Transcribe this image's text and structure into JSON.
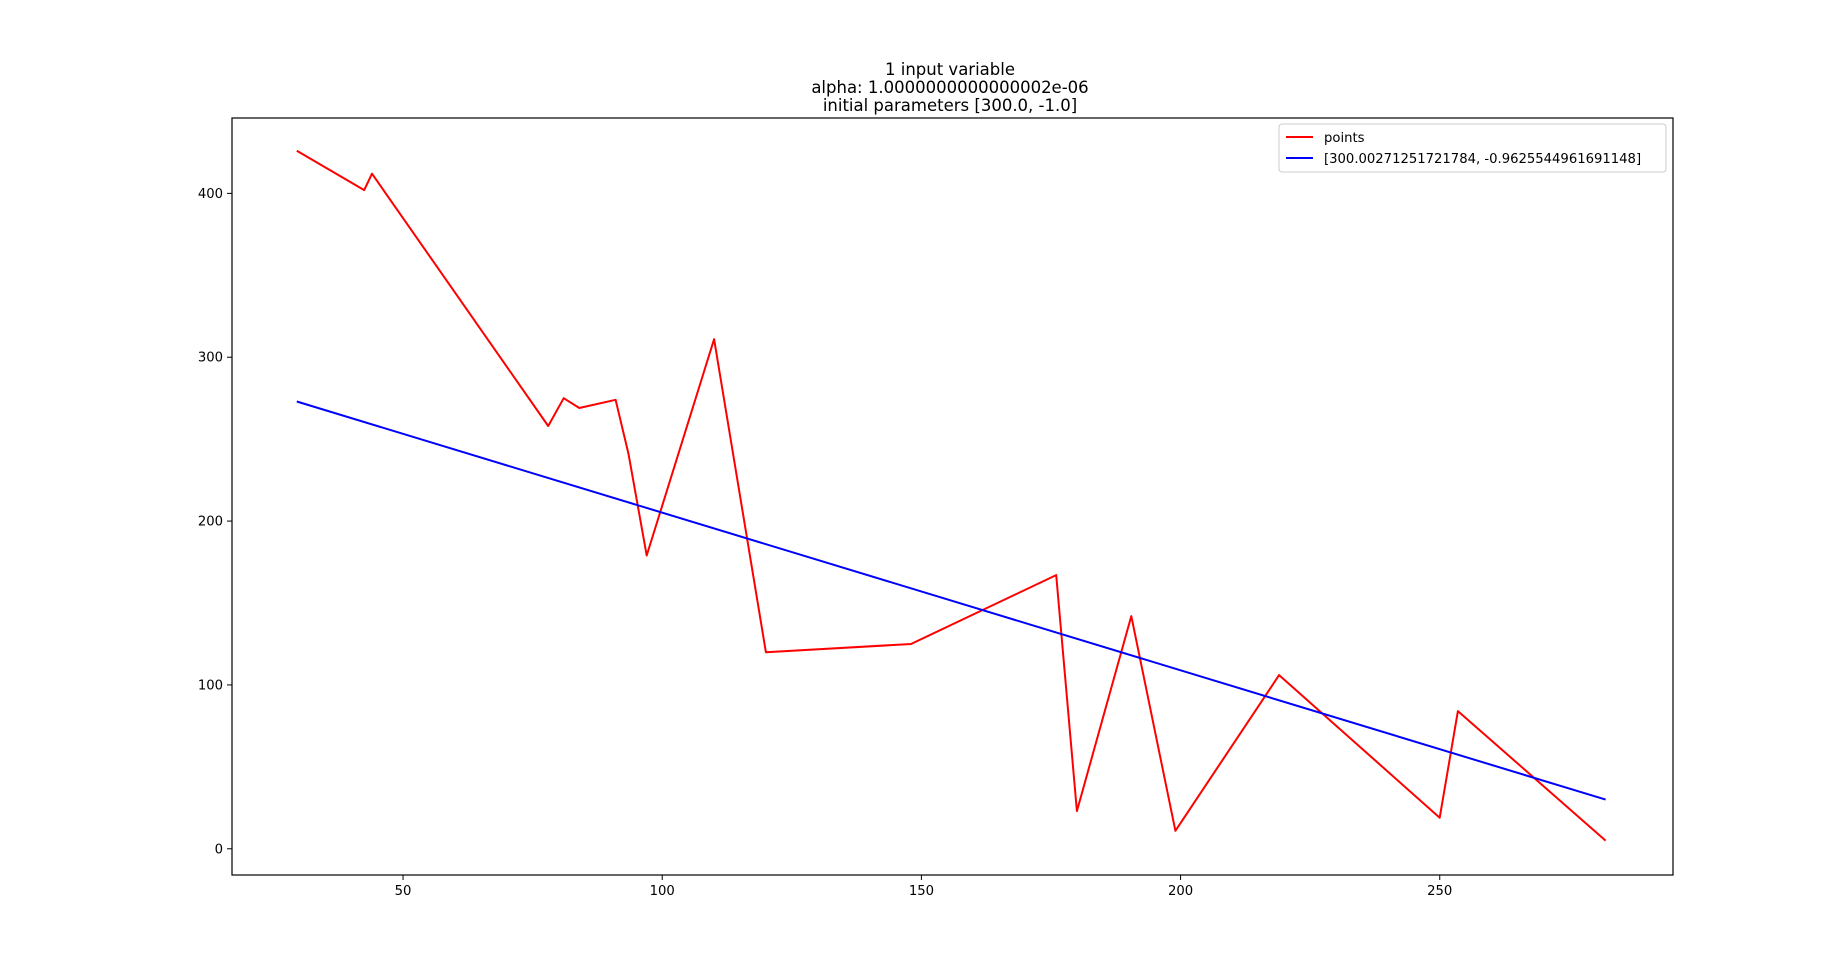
{
  "chart_data": {
    "type": "line",
    "title": [
      "1 input variable",
      "alpha: 1.0000000000000002e-06",
      "initial parameters [300.0, -1.0]"
    ],
    "xlabel": "",
    "ylabel": "",
    "xlim": [
      17,
      295
    ],
    "ylim": [
      -16,
      446
    ],
    "xticks": [
      50,
      100,
      150,
      200,
      250
    ],
    "yticks": [
      0,
      100,
      200,
      300,
      400
    ],
    "grid": false,
    "legend_position": "top-right",
    "series": [
      {
        "name": "points",
        "color": "#ff0000",
        "x": [
          29.5,
          42.5,
          44,
          78,
          81,
          84,
          91,
          93.5,
          97,
          110,
          120,
          148,
          176,
          180,
          190.5,
          199,
          219,
          250,
          253.5,
          282
        ],
        "y": [
          426,
          402,
          412,
          258,
          275,
          269,
          274,
          241,
          179,
          311,
          120,
          125,
          167,
          23,
          142,
          11,
          106,
          19,
          84,
          5
        ]
      },
      {
        "name": "[300.00271251721784, -0.9625544961691148]",
        "color": "#0000ff",
        "x": [
          29.5,
          282
        ],
        "y": [
          273,
          30
        ]
      }
    ]
  }
}
